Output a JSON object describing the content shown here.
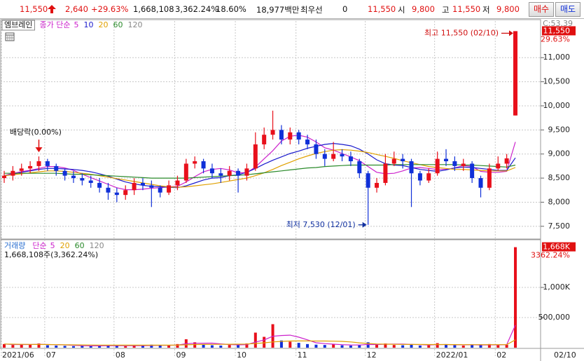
{
  "header": {
    "price": "11,550",
    "change": "2,640",
    "change_rate": "+29.63%",
    "volume": "1,668,108",
    "volume_rate": "3,362.24%",
    "turnover": "18.60%",
    "amount": "18,977백만",
    "best_label": "최우선",
    "best_value": "0",
    "current": "11,550",
    "open_label": "시",
    "open": "9,800",
    "high_label": "고",
    "high": "11,550",
    "low_label": "저",
    "low": "9,800",
    "buy": "매수",
    "sell": "매도"
  },
  "chart_data": [
    {
      "type": "candlestick",
      "name": "엠브레인",
      "ma_label": "종가 단순",
      "categories": [
        "2021/06",
        null,
        null,
        null,
        null,
        "07",
        null,
        null,
        null,
        null,
        null,
        null,
        null,
        "08",
        null,
        null,
        null,
        null,
        null,
        null,
        "09",
        null,
        null,
        null,
        null,
        null,
        null,
        "10",
        null,
        null,
        null,
        null,
        null,
        null,
        "11",
        null,
        null,
        null,
        null,
        null,
        null,
        null,
        "12",
        null,
        null,
        null,
        null,
        null,
        null,
        null,
        "2022/01",
        null,
        null,
        null,
        null,
        null,
        null,
        "02",
        null,
        null
      ],
      "x_end_label": "02/10",
      "open": [
        8500,
        8550,
        8650,
        8700,
        8750,
        8850,
        8750,
        8650,
        8550,
        8500,
        8450,
        8400,
        8300,
        8200,
        8150,
        8250,
        8400,
        8350,
        8300,
        8200,
        8350,
        8450,
        8800,
        8850,
        8700,
        8600,
        8550,
        8650,
        8550,
        8700,
        9200,
        9400,
        9500,
        9300,
        9450,
        9300,
        9200,
        9000,
        8900,
        9000,
        8950,
        8850,
        8600,
        8300,
        8400,
        8800,
        8900,
        8850,
        8600,
        8450,
        8600,
        8900,
        8850,
        8750,
        8800,
        8500,
        8300,
        8700,
        8800,
        9800
      ],
      "high": [
        8650,
        8750,
        8800,
        8850,
        8950,
        8900,
        8800,
        8700,
        8650,
        8600,
        8550,
        8500,
        8400,
        8300,
        8350,
        8500,
        8500,
        8450,
        8350,
        8450,
        8550,
        8900,
        8950,
        8900,
        8800,
        8700,
        8750,
        8700,
        8800,
        9450,
        9550,
        9900,
        9600,
        9550,
        9500,
        9400,
        9300,
        9100,
        9250,
        9100,
        9050,
        8900,
        8650,
        8500,
        9000,
        9050,
        9000,
        8900,
        8650,
        8700,
        9050,
        9100,
        8950,
        8900,
        8850,
        8550,
        8800,
        8950,
        9000,
        11550
      ],
      "low": [
        8400,
        8450,
        8550,
        8600,
        8650,
        8650,
        8550,
        8450,
        8400,
        8350,
        8300,
        8200,
        8050,
        8000,
        8050,
        8150,
        8250,
        7900,
        8100,
        8150,
        8250,
        8400,
        8700,
        8600,
        8500,
        8400,
        8450,
        8200,
        8450,
        8650,
        9100,
        9300,
        9200,
        9200,
        9200,
        9100,
        8900,
        8750,
        8850,
        8850,
        8750,
        8500,
        7530,
        8200,
        8350,
        8750,
        8700,
        7900,
        8350,
        8400,
        8550,
        8750,
        8650,
        8650,
        8400,
        8100,
        8250,
        8650,
        8700,
        9800
      ],
      "close": [
        8550,
        8650,
        8700,
        8750,
        8850,
        8750,
        8650,
        8550,
        8500,
        8450,
        8400,
        8300,
        8200,
        8150,
        8250,
        8400,
        8350,
        8300,
        8200,
        8350,
        8450,
        8800,
        8850,
        8700,
        8600,
        8550,
        8650,
        8550,
        8700,
        9200,
        9400,
        9500,
        9300,
        9450,
        9300,
        9200,
        9000,
        8900,
        9000,
        8950,
        8850,
        8600,
        8300,
        8400,
        8800,
        8900,
        8850,
        8600,
        8450,
        8600,
        8900,
        8850,
        8750,
        8800,
        8500,
        8300,
        8700,
        8800,
        8910,
        11550
      ],
      "up_color": "#e8101b",
      "down_color": "#1030d8",
      "series": [
        {
          "name": "5",
          "color": "#cc22cc",
          "values": [
            8550,
            8600,
            8633,
            8663,
            8700,
            8740,
            8740,
            8710,
            8660,
            8580,
            8510,
            8440,
            8370,
            8300,
            8260,
            8260,
            8270,
            8290,
            8300,
            8320,
            8330,
            8420,
            8530,
            8630,
            8680,
            8700,
            8670,
            8610,
            8610,
            8730,
            8900,
            9070,
            9270,
            9370,
            9390,
            9350,
            9250,
            9130,
            9080,
            9010,
            8940,
            8860,
            8740,
            8620,
            8590,
            8600,
            8650,
            8710,
            8720,
            8700,
            8680,
            8680,
            8710,
            8760,
            8740,
            8640,
            8620,
            8620,
            8640,
            9250
          ]
        },
        {
          "name": "10",
          "color": "#1a1acc",
          "values": [
            8550,
            8580,
            8620,
            8650,
            8680,
            8700,
            8700,
            8690,
            8680,
            8660,
            8630,
            8590,
            8540,
            8480,
            8420,
            8380,
            8350,
            8330,
            8320,
            8310,
            8300,
            8340,
            8400,
            8460,
            8500,
            8510,
            8550,
            8570,
            8620,
            8700,
            8790,
            8870,
            8940,
            9010,
            9060,
            9120,
            9160,
            9200,
            9220,
            9200,
            9170,
            9100,
            9000,
            8880,
            8800,
            8770,
            8760,
            8720,
            8680,
            8660,
            8640,
            8670,
            8710,
            8730,
            8720,
            8700,
            8680,
            8660,
            8660,
            8920
          ]
        },
        {
          "name": "20",
          "color": "#e0a000",
          "values": [
            8550,
            8570,
            8590,
            8610,
            8630,
            8650,
            8650,
            8640,
            8620,
            8600,
            8580,
            8550,
            8520,
            8490,
            8460,
            8430,
            8400,
            8370,
            8340,
            8320,
            8310,
            8320,
            8340,
            8360,
            8380,
            8410,
            8440,
            8470,
            8500,
            8550,
            8610,
            8680,
            8760,
            8830,
            8900,
            8960,
            9010,
            9050,
            9080,
            9090,
            9080,
            9060,
            9030,
            8990,
            8950,
            8910,
            8860,
            8820,
            8780,
            8740,
            8720,
            8700,
            8680,
            8680,
            8670,
            8660,
            8650,
            8650,
            8650,
            8720
          ]
        },
        {
          "name": "60",
          "color": "#2a8a2a",
          "values": [
            8600,
            8600,
            8600,
            8600,
            8600,
            8600,
            8600,
            8590,
            8580,
            8580,
            8570,
            8560,
            8550,
            8540,
            8530,
            8520,
            8510,
            8500,
            8500,
            8500,
            8500,
            8500,
            8510,
            8520,
            8530,
            8540,
            8550,
            8560,
            8570,
            8590,
            8610,
            8630,
            8650,
            8670,
            8690,
            8710,
            8720,
            8740,
            8750,
            8760,
            8770,
            8770,
            8770,
            8770,
            8770,
            8780,
            8780,
            8780,
            8780,
            8780,
            8780,
            8780,
            8780,
            8770,
            8770,
            8760,
            8750,
            8740,
            8730,
            8770
          ]
        },
        {
          "name": "120",
          "color": "#888888",
          "values": [
            null,
            null,
            null,
            null,
            null,
            null,
            null,
            null,
            null,
            null,
            null,
            null,
            null,
            null,
            null,
            null,
            null,
            null,
            null,
            null,
            null,
            null,
            null,
            null,
            null,
            null,
            null,
            null,
            null,
            null,
            null,
            null,
            null,
            null,
            null,
            null,
            null,
            null,
            null,
            null,
            null,
            null,
            null,
            null,
            null,
            null,
            null,
            null,
            null,
            null,
            null,
            null,
            null,
            null,
            null,
            null,
            null,
            null,
            null,
            null
          ]
        }
      ],
      "ylim": [
        7250,
        11760
      ],
      "yticks": [
        {
          "value": 7500,
          "label": "7,500"
        },
        {
          "value": 8000,
          "label": "8,000"
        },
        {
          "value": 8500,
          "label": "8,500"
        },
        {
          "value": 9000,
          "label": "9,000"
        },
        {
          "value": 9500,
          "label": "9,500"
        },
        {
          "value": 10000,
          "label": "10,000"
        },
        {
          "value": 10500,
          "label": "10,500"
        },
        {
          "value": 11000,
          "label": "11,000"
        }
      ],
      "grid": true,
      "last_label": {
        "value": 11550,
        "label": "11,550"
      },
      "last_change": "29.63%",
      "corner_label": "C:53.39",
      "annotations": [
        {
          "text": "최고 11,550 (02/10)"
        },
        {
          "text": "최저 7,530 (12/01)"
        },
        {
          "text": "배당락(0.00%)",
          "index": 4
        }
      ]
    },
    {
      "type": "bar",
      "name": "거래량",
      "ma_label": "단순",
      "values": [
        60000,
        45000,
        50000,
        55000,
        70000,
        40000,
        35000,
        30000,
        25000,
        30000,
        28000,
        35000,
        40000,
        30000,
        25000,
        45000,
        30000,
        50000,
        40000,
        35000,
        60000,
        140000,
        90000,
        50000,
        40000,
        35000,
        45000,
        60000,
        70000,
        250000,
        180000,
        390000,
        120000,
        100000,
        80000,
        60000,
        50000,
        45000,
        55000,
        40000,
        35000,
        45000,
        90000,
        50000,
        70000,
        45000,
        40000,
        60000,
        35000,
        40000,
        75000,
        50000,
        40000,
        35000,
        45000,
        55000,
        60000,
        40000,
        48000,
        1668108
      ],
      "value_summary": "1,668,108주(3,362.24%)",
      "series": [
        {
          "name": "5",
          "color": "#cc22cc",
          "values": [
            60000,
            52000,
            52000,
            52000,
            56000,
            52000,
            50000,
            46000,
            40000,
            32000,
            30000,
            30000,
            32000,
            33000,
            32000,
            35000,
            34000,
            36000,
            38000,
            40000,
            43000,
            65000,
            73000,
            75000,
            76000,
            63000,
            52000,
            46000,
            50000,
            92000,
            129000,
            190000,
            202000,
            208000,
            174000,
            130000,
            82000,
            67000,
            58000,
            50000,
            45000,
            44000,
            53000,
            52000,
            58000,
            60000,
            59000,
            53000,
            50000,
            44000,
            50000,
            52000,
            48000,
            48000,
            49000,
            45000,
            47000,
            47000,
            50000,
            374000
          ]
        },
        {
          "name": "20",
          "color": "#e0a000",
          "values": [
            60000,
            58000,
            56000,
            55000,
            54000,
            52000,
            50000,
            48000,
            46000,
            45000,
            44000,
            43000,
            42000,
            42000,
            42000,
            42000,
            42000,
            42000,
            42000,
            42000,
            43000,
            48000,
            52000,
            54000,
            55000,
            56000,
            57000,
            58000,
            60000,
            70000,
            80000,
            95000,
            105000,
            110000,
            112000,
            112000,
            111000,
            110000,
            108000,
            105000,
            95000,
            80000,
            70000,
            62000,
            58000,
            56000,
            55000,
            54000,
            53000,
            52000,
            52000,
            52000,
            51000,
            50000,
            50000,
            50000,
            50000,
            50000,
            50000,
            130000
          ]
        },
        {
          "name": "60",
          "color": "#2a8a2a",
          "values": [
            null,
            null,
            null,
            null,
            null,
            null,
            null,
            null,
            null,
            null,
            null,
            null,
            null,
            null,
            null,
            null,
            null,
            null,
            null,
            null,
            null,
            null,
            null,
            null,
            null,
            null,
            null,
            null,
            null,
            null,
            null,
            null,
            null,
            null,
            null,
            null,
            null,
            null,
            null,
            null,
            null,
            null,
            null,
            null,
            null,
            null,
            null,
            null,
            null,
            null,
            null,
            null,
            null,
            null,
            null,
            null,
            null,
            null,
            null,
            null
          ]
        },
        {
          "name": "120",
          "color": "#888888",
          "values": [
            null,
            null,
            null,
            null,
            null,
            null,
            null,
            null,
            null,
            null,
            null,
            null,
            null,
            null,
            null,
            null,
            null,
            null,
            null,
            null,
            null,
            null,
            null,
            null,
            null,
            null,
            null,
            null,
            null,
            null,
            null,
            null,
            null,
            null,
            null,
            null,
            null,
            null,
            null,
            null,
            null,
            null,
            null,
            null,
            null,
            null,
            null,
            null,
            null,
            null,
            null,
            null,
            null,
            null,
            null,
            null,
            null,
            null,
            null,
            null
          ]
        }
      ],
      "ylim": [
        0,
        1780000
      ],
      "yticks": [
        {
          "value": 500000,
          "label": "500,000"
        },
        {
          "value": 1000000,
          "label": "1,000K"
        }
      ],
      "grid": true,
      "last_label": {
        "value": 1668108,
        "label": "1,668K"
      },
      "last_change": "3362.24%"
    }
  ]
}
